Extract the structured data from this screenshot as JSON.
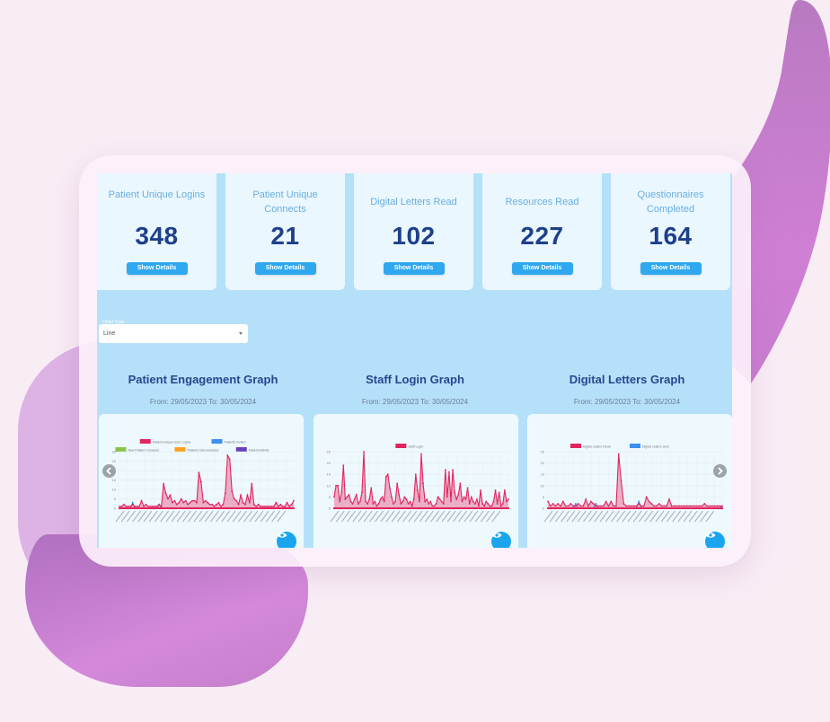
{
  "stats": [
    {
      "label": "Patient Unique Logins",
      "value": "348",
      "button": "Show Details"
    },
    {
      "label": "Patient Unique Connects",
      "value": "21",
      "button": "Show Details"
    },
    {
      "label": "Digital Letters Read",
      "value": "102",
      "button": "Show Details"
    },
    {
      "label": "Resources Read",
      "value": "227",
      "button": "Show Details"
    },
    {
      "label": "Questionnaires Completed",
      "value": "164",
      "button": "Show Details"
    }
  ],
  "chart_type": {
    "label": "Chart Type",
    "value": "Line"
  },
  "graphs": [
    {
      "title": "Patient Engagement Graph",
      "range": "From: 29/05/2023 To: 30/05/2024"
    },
    {
      "title": "Staff Login Graph",
      "range": "From: 29/05/2023 To: 30/05/2024"
    },
    {
      "title": "Digital Letters Graph",
      "range": "From: 29/05/2023 To: 30/05/2024"
    }
  ],
  "icons": {
    "prev": "chevron-left-icon",
    "next": "chevron-right-icon",
    "view": "eye-icon"
  },
  "colors": {
    "accent": "#2fa8ef",
    "stat_value": "#1e3f8a",
    "graph_title": "#25488f",
    "primary_series": "#e2245e",
    "secondary_series": "#3a8ff0"
  },
  "chart_data": [
    {
      "type": "line",
      "title": "Patient Engagement Graph",
      "subtitle": "From: 29/05/2023 To: 30/05/2024",
      "legend": [
        "Patient Unique User Logins",
        "Patients Invited",
        "New Patient Connects",
        "Patients Disconnected",
        "Patient Activity"
      ],
      "legend_colors": [
        "#e2245e",
        "#3a8ff0",
        "#8bc34a",
        "#ff9f1c",
        "#6a3fc0"
      ],
      "ylim": [
        0,
        30
      ],
      "yticks": [
        0,
        5,
        10,
        15,
        20,
        25,
        30
      ],
      "xlabel": "date (daily, rotated labels)",
      "series": [
        {
          "name": "Patient Unique User Logins",
          "values": [
            1,
            1,
            2,
            1,
            1,
            1,
            2,
            1,
            1,
            1,
            4,
            1,
            2,
            1,
            1,
            1,
            1,
            1,
            2,
            1,
            13,
            8,
            5,
            7,
            3,
            4,
            2,
            3,
            5,
            3,
            4,
            2,
            3,
            4,
            4,
            3,
            19,
            14,
            3,
            4,
            3,
            2,
            2,
            1,
            2,
            3,
            1,
            2,
            8,
            28,
            26,
            9,
            5,
            4,
            2,
            7,
            3,
            2,
            7,
            3,
            13,
            2,
            1,
            2,
            1,
            1,
            1,
            1,
            1,
            1,
            1,
            3,
            1,
            2,
            1,
            1,
            3,
            1,
            2,
            4
          ]
        },
        {
          "name": "Patients Invited",
          "values": [
            0,
            0,
            0,
            0,
            0,
            0,
            3,
            0,
            0,
            0,
            0,
            0,
            0,
            0,
            0,
            0,
            0,
            0,
            2,
            0,
            0,
            0,
            0,
            0,
            0,
            0,
            0,
            0,
            0,
            0,
            0,
            0,
            0,
            0,
            0,
            0,
            0,
            0,
            0,
            0,
            0,
            0,
            0,
            0,
            0,
            0,
            0,
            0,
            0,
            0,
            0,
            0,
            0,
            0,
            0,
            0,
            0,
            0,
            0,
            0,
            0,
            0,
            0,
            0,
            0,
            0,
            0,
            0,
            0,
            0,
            0,
            0,
            0,
            0,
            0,
            0,
            0,
            0,
            0,
            0
          ]
        }
      ]
    },
    {
      "type": "line",
      "title": "Staff Login Graph",
      "subtitle": "From: 29/05/2023 To: 30/05/2024",
      "legend": [
        "Staff Login"
      ],
      "legend_colors": [
        "#e2245e"
      ],
      "ylim": [
        0,
        25
      ],
      "yticks": [
        0,
        5,
        10,
        15,
        20,
        25
      ],
      "series": [
        {
          "name": "Staff Login",
          "values": [
            5,
            10,
            10,
            3,
            7,
            19,
            4,
            5,
            6,
            3,
            2,
            4,
            6,
            2,
            3,
            7,
            25,
            3,
            2,
            4,
            9,
            2,
            3,
            1,
            2,
            4,
            5,
            3,
            14,
            15,
            9,
            5,
            2,
            3,
            11,
            6,
            2,
            3,
            5,
            4,
            2,
            3,
            1,
            4,
            15,
            8,
            3,
            24,
            11,
            3,
            4,
            2,
            3,
            1,
            1,
            2,
            5,
            4,
            3,
            2,
            17,
            5,
            16,
            3,
            17,
            7,
            4,
            6,
            11,
            3,
            5,
            4,
            9,
            2,
            5,
            3,
            2,
            4,
            1,
            8,
            2,
            1,
            3,
            2,
            1,
            1,
            3,
            8,
            2,
            7,
            1,
            2,
            8,
            3,
            4
          ]
        }
      ]
    },
    {
      "type": "line",
      "title": "Digital Letters Graph",
      "subtitle": "From: 29/05/2023 To: 30/05/2024",
      "legend": [
        "Digital Letters Read",
        "Digital Letters Sent"
      ],
      "legend_colors": [
        "#e2245e",
        "#3a8ff0"
      ],
      "ylim": [
        0,
        25
      ],
      "yticks": [
        0,
        5,
        10,
        15,
        20,
        25
      ],
      "series": [
        {
          "name": "Digital Letters Read",
          "values": [
            3,
            1,
            2,
            1,
            2,
            1,
            3,
            1,
            1,
            2,
            1,
            1,
            2,
            1,
            1,
            4,
            1,
            3,
            2,
            1,
            1,
            1,
            1,
            3,
            1,
            3,
            1,
            1,
            24,
            12,
            2,
            1,
            1,
            1,
            1,
            1,
            2,
            1,
            1,
            5,
            3,
            2,
            1,
            1,
            2,
            1,
            1,
            1,
            4,
            1,
            1,
            1,
            1,
            1,
            1,
            1,
            1,
            1,
            1,
            1,
            1,
            1,
            2,
            1,
            1,
            1,
            1,
            1,
            1,
            1
          ]
        },
        {
          "name": "Digital Letters Sent",
          "values": [
            0,
            0,
            0,
            0,
            0,
            0,
            0,
            0,
            0,
            0,
            0,
            2,
            0,
            0,
            0,
            0,
            0,
            0,
            0,
            2,
            0,
            0,
            0,
            0,
            0,
            0,
            0,
            0,
            0,
            0,
            0,
            0,
            0,
            0,
            0,
            0,
            3,
            0,
            0,
            0,
            0,
            0,
            0,
            0,
            0,
            0,
            0,
            0,
            0,
            0,
            0,
            0,
            0,
            0,
            0,
            0,
            0,
            0,
            0,
            0,
            0,
            0,
            0,
            0,
            0,
            0,
            0,
            0,
            0,
            1
          ]
        }
      ]
    }
  ]
}
